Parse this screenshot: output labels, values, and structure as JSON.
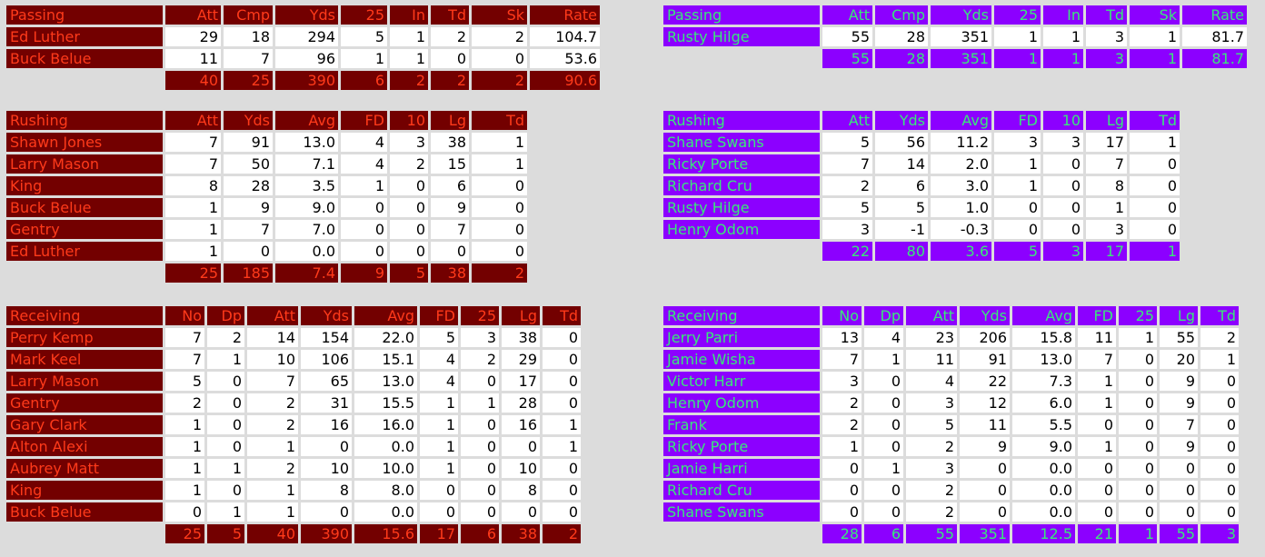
{
  "colors": {
    "home_bg": "#730000",
    "home_fg": "#ff3a1a",
    "away_bg": "#8c00ff",
    "away_fg": "#39e87a",
    "cell_bg": "#ffffff",
    "page_bg": "#dcdcdc"
  },
  "home": {
    "passing": {
      "title": "Passing",
      "columns": [
        "Att",
        "Cmp",
        "Yds",
        "25",
        "In",
        "Td",
        "Sk",
        "Rate"
      ],
      "rows": [
        {
          "name": "Ed Luther",
          "values": [
            "29",
            "18",
            "294",
            "5",
            "1",
            "2",
            "2",
            "104.7"
          ]
        },
        {
          "name": "Buck Belue",
          "values": [
            "11",
            "7",
            "96",
            "1",
            "1",
            "0",
            "0",
            "53.6"
          ]
        }
      ],
      "totals": [
        "40",
        "25",
        "390",
        "6",
        "2",
        "2",
        "2",
        "90.6"
      ]
    },
    "rushing": {
      "title": "Rushing",
      "columns": [
        "Att",
        "Yds",
        "Avg",
        "FD",
        "10",
        "Lg",
        "Td"
      ],
      "rows": [
        {
          "name": "Shawn Jones",
          "values": [
            "7",
            "91",
            "13.0",
            "4",
            "3",
            "38",
            "1"
          ]
        },
        {
          "name": "Larry Mason",
          "values": [
            "7",
            "50",
            "7.1",
            "4",
            "2",
            "15",
            "1"
          ]
        },
        {
          "name": "King",
          "values": [
            "8",
            "28",
            "3.5",
            "1",
            "0",
            "6",
            "0"
          ]
        },
        {
          "name": "Buck Belue",
          "values": [
            "1",
            "9",
            "9.0",
            "0",
            "0",
            "9",
            "0"
          ]
        },
        {
          "name": "Gentry",
          "values": [
            "1",
            "7",
            "7.0",
            "0",
            "0",
            "7",
            "0"
          ]
        },
        {
          "name": "Ed Luther",
          "values": [
            "1",
            "0",
            "0.0",
            "0",
            "0",
            "0",
            "0"
          ]
        }
      ],
      "totals": [
        "25",
        "185",
        "7.4",
        "9",
        "5",
        "38",
        "2"
      ]
    },
    "receiving": {
      "title": "Receiving",
      "columns": [
        "No",
        "Dp",
        "Att",
        "Yds",
        "Avg",
        "FD",
        "25",
        "Lg",
        "Td"
      ],
      "rows": [
        {
          "name": "Perry Kemp",
          "values": [
            "7",
            "2",
            "14",
            "154",
            "22.0",
            "5",
            "3",
            "38",
            "0"
          ]
        },
        {
          "name": "Mark Keel",
          "values": [
            "7",
            "1",
            "10",
            "106",
            "15.1",
            "4",
            "2",
            "29",
            "0"
          ]
        },
        {
          "name": "Larry Mason",
          "values": [
            "5",
            "0",
            "7",
            "65",
            "13.0",
            "4",
            "0",
            "17",
            "0"
          ]
        },
        {
          "name": "Gentry",
          "values": [
            "2",
            "0",
            "2",
            "31",
            "15.5",
            "1",
            "1",
            "28",
            "0"
          ]
        },
        {
          "name": "Gary Clark",
          "values": [
            "1",
            "0",
            "2",
            "16",
            "16.0",
            "1",
            "0",
            "16",
            "1"
          ]
        },
        {
          "name": "Alton Alexi",
          "values": [
            "1",
            "0",
            "1",
            "0",
            "0.0",
            "1",
            "0",
            "0",
            "1"
          ]
        },
        {
          "name": "Aubrey Matt",
          "values": [
            "1",
            "1",
            "2",
            "10",
            "10.0",
            "1",
            "0",
            "10",
            "0"
          ]
        },
        {
          "name": "King",
          "values": [
            "1",
            "0",
            "1",
            "8",
            "8.0",
            "0",
            "0",
            "8",
            "0"
          ]
        },
        {
          "name": "Buck Belue",
          "values": [
            "0",
            "1",
            "1",
            "0",
            "0.0",
            "0",
            "0",
            "0",
            "0"
          ]
        }
      ],
      "totals": [
        "25",
        "5",
        "40",
        "390",
        "15.6",
        "17",
        "6",
        "38",
        "2"
      ]
    }
  },
  "away": {
    "passing": {
      "title": "Passing",
      "columns": [
        "Att",
        "Cmp",
        "Yds",
        "25",
        "In",
        "Td",
        "Sk",
        "Rate"
      ],
      "rows": [
        {
          "name": "Rusty Hilge",
          "values": [
            "55",
            "28",
            "351",
            "1",
            "1",
            "3",
            "1",
            "81.7"
          ]
        }
      ],
      "totals": [
        "55",
        "28",
        "351",
        "1",
        "1",
        "3",
        "1",
        "81.7"
      ]
    },
    "rushing": {
      "title": "Rushing",
      "columns": [
        "Att",
        "Yds",
        "Avg",
        "FD",
        "10",
        "Lg",
        "Td"
      ],
      "rows": [
        {
          "name": "Shane Swans",
          "values": [
            "5",
            "56",
            "11.2",
            "3",
            "3",
            "17",
            "1"
          ]
        },
        {
          "name": "Ricky Porte",
          "values": [
            "7",
            "14",
            "2.0",
            "1",
            "0",
            "7",
            "0"
          ]
        },
        {
          "name": "Richard Cru",
          "values": [
            "2",
            "6",
            "3.0",
            "1",
            "0",
            "8",
            "0"
          ]
        },
        {
          "name": "Rusty Hilge",
          "values": [
            "5",
            "5",
            "1.0",
            "0",
            "0",
            "1",
            "0"
          ]
        },
        {
          "name": "Henry Odom",
          "values": [
            "3",
            "-1",
            "-0.3",
            "0",
            "0",
            "3",
            "0"
          ]
        }
      ],
      "totals": [
        "22",
        "80",
        "3.6",
        "5",
        "3",
        "17",
        "1"
      ]
    },
    "receiving": {
      "title": "Receiving",
      "columns": [
        "No",
        "Dp",
        "Att",
        "Yds",
        "Avg",
        "FD",
        "25",
        "Lg",
        "Td"
      ],
      "rows": [
        {
          "name": "Jerry Parri",
          "values": [
            "13",
            "4",
            "23",
            "206",
            "15.8",
            "11",
            "1",
            "55",
            "2"
          ]
        },
        {
          "name": "Jamie Wisha",
          "values": [
            "7",
            "1",
            "11",
            "91",
            "13.0",
            "7",
            "0",
            "20",
            "1"
          ]
        },
        {
          "name": "Victor Harr",
          "values": [
            "3",
            "0",
            "4",
            "22",
            "7.3",
            "1",
            "0",
            "9",
            "0"
          ]
        },
        {
          "name": "Henry Odom",
          "values": [
            "2",
            "0",
            "3",
            "12",
            "6.0",
            "1",
            "0",
            "9",
            "0"
          ]
        },
        {
          "name": "Frank",
          "values": [
            "2",
            "0",
            "5",
            "11",
            "5.5",
            "0",
            "0",
            "7",
            "0"
          ]
        },
        {
          "name": "Ricky Porte",
          "values": [
            "1",
            "0",
            "2",
            "9",
            "9.0",
            "1",
            "0",
            "9",
            "0"
          ]
        },
        {
          "name": "Jamie Harri",
          "values": [
            "0",
            "1",
            "3",
            "0",
            "0.0",
            "0",
            "0",
            "0",
            "0"
          ]
        },
        {
          "name": "Richard Cru",
          "values": [
            "0",
            "0",
            "2",
            "0",
            "0.0",
            "0",
            "0",
            "0",
            "0"
          ]
        },
        {
          "name": "Shane Swans",
          "values": [
            "0",
            "0",
            "2",
            "0",
            "0.0",
            "0",
            "0",
            "0",
            "0"
          ]
        }
      ],
      "totals": [
        "28",
        "6",
        "55",
        "351",
        "12.5",
        "21",
        "1",
        "55",
        "3"
      ]
    }
  }
}
